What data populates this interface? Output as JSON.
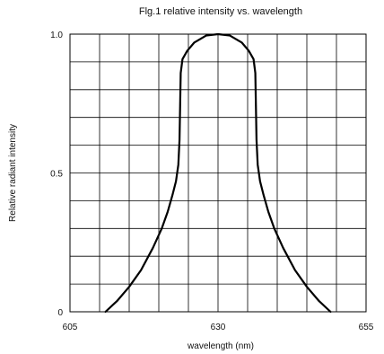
{
  "chart_data": {
    "type": "line",
    "title": "Flg.1 relative intensity vs. wavelength",
    "xlabel": "wavelength (nm)",
    "ylabel": "Relative radiant intensity",
    "xlim": [
      605,
      655
    ],
    "ylim": [
      0,
      1.0
    ],
    "x_ticks": [
      605,
      630,
      655
    ],
    "y_ticks": [
      {
        "value": 0,
        "label": "0"
      },
      {
        "value": 0.5,
        "label": "0.5"
      },
      {
        "value": 1.0,
        "label": "1.0"
      }
    ],
    "grid": true,
    "grid_x_divisions": 10,
    "grid_y_divisions": 10,
    "series": [
      {
        "color": "#000000",
        "x": [
          611.0,
          613.0,
          615.0,
          617.0,
          619.0,
          620.5,
          621.5,
          622.3,
          622.9,
          623.3,
          623.5,
          623.6,
          623.7,
          624.0,
          624.8,
          626.0,
          628.0,
          630.0,
          632.0,
          634.0,
          635.2,
          636.0,
          636.3,
          636.4,
          636.5,
          636.7,
          637.1,
          637.7,
          638.5,
          639.5,
          641.0,
          643.0,
          645.0,
          647.0,
          649.0
        ],
        "y": [
          0.0,
          0.04,
          0.09,
          0.15,
          0.23,
          0.3,
          0.36,
          0.42,
          0.47,
          0.53,
          0.62,
          0.74,
          0.86,
          0.91,
          0.94,
          0.97,
          0.995,
          1.0,
          0.995,
          0.97,
          0.94,
          0.91,
          0.86,
          0.74,
          0.62,
          0.53,
          0.47,
          0.42,
          0.36,
          0.3,
          0.23,
          0.15,
          0.09,
          0.04,
          0.0
        ]
      }
    ]
  }
}
